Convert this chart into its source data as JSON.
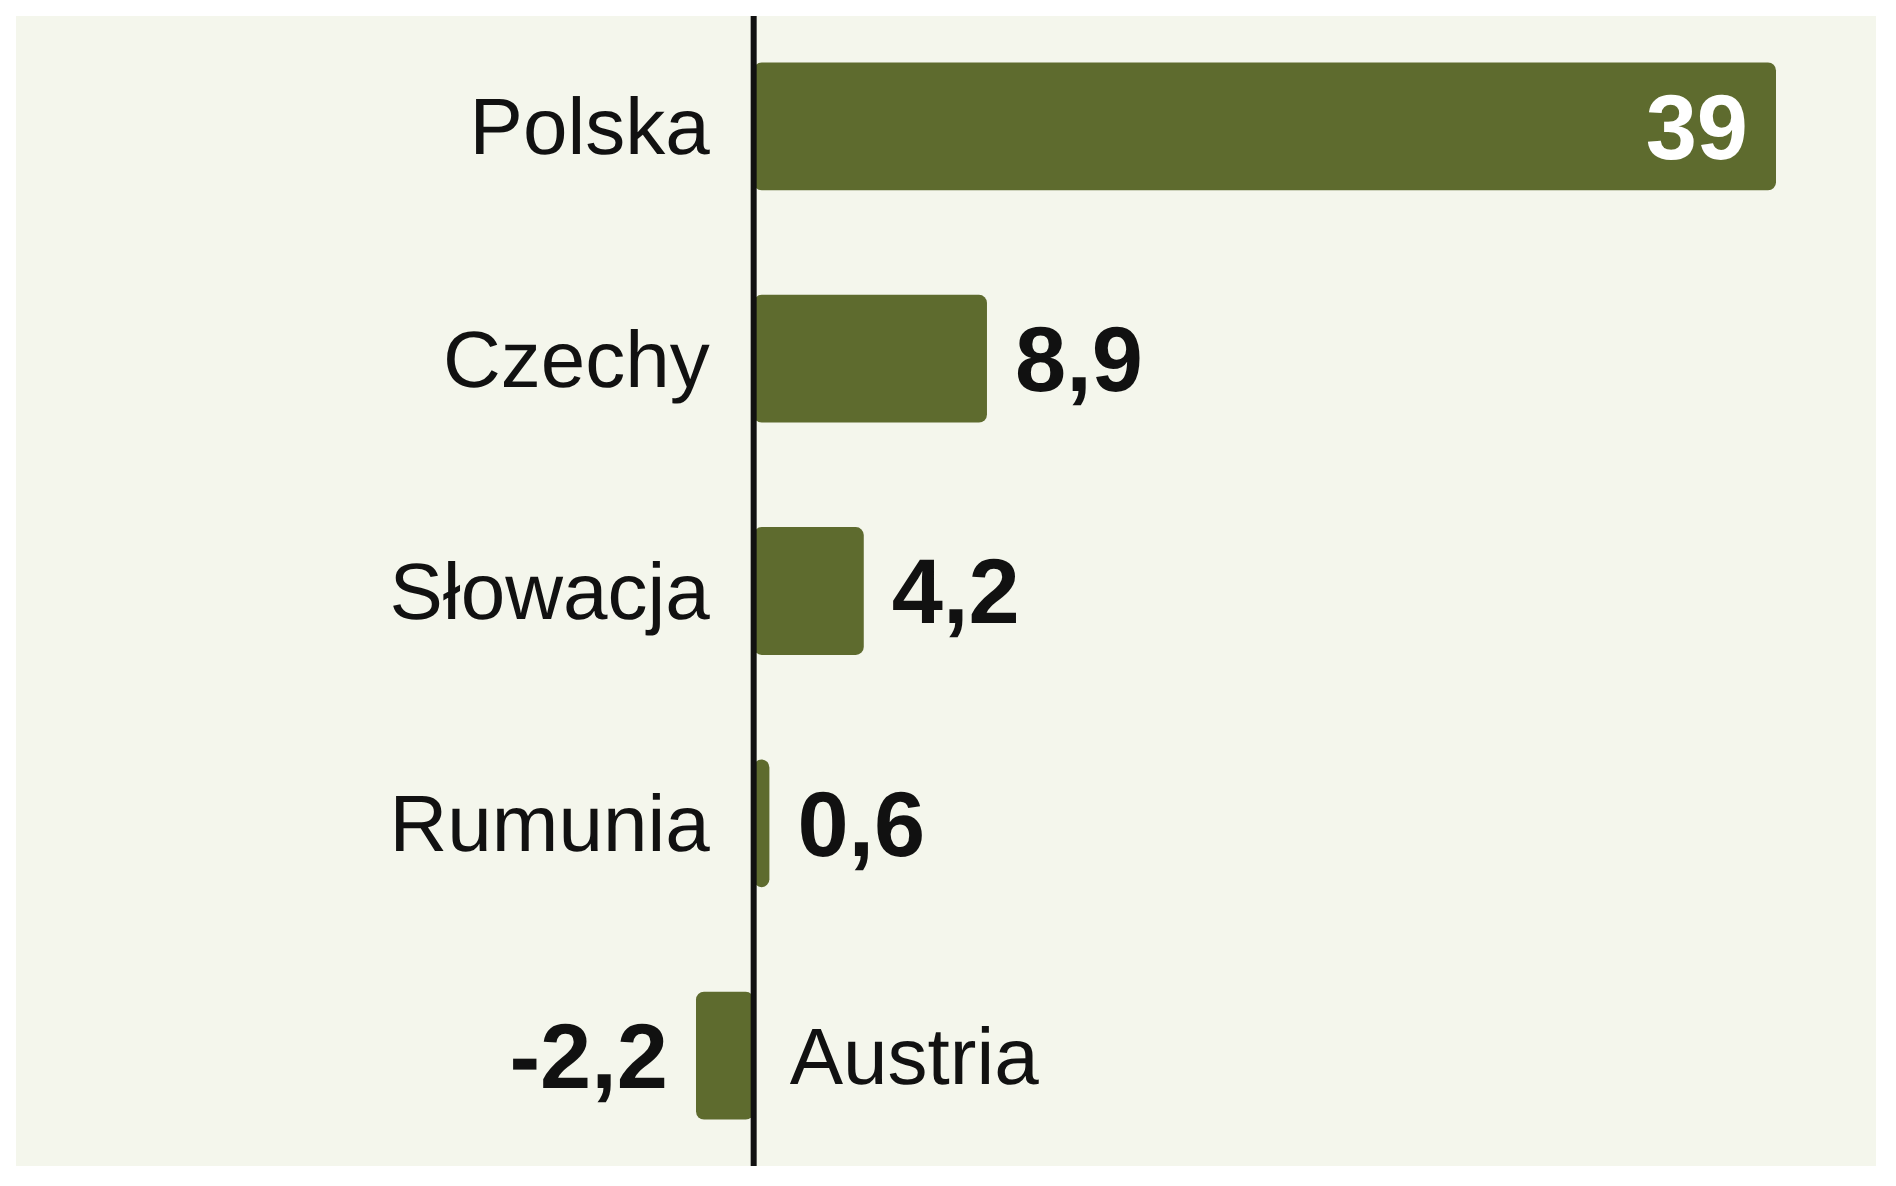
{
  "chart_data": {
    "type": "bar",
    "orientation": "horizontal",
    "categories": [
      "Polska",
      "Czechy",
      "Słowacja",
      "Rumunia",
      "Austria"
    ],
    "values": [
      39,
      8.9,
      4.2,
      0.6,
      -2.2
    ],
    "value_labels": [
      "39",
      "8,9",
      "4,2",
      "0,6",
      "-2,2"
    ],
    "color": "#5e6b2e"
  }
}
